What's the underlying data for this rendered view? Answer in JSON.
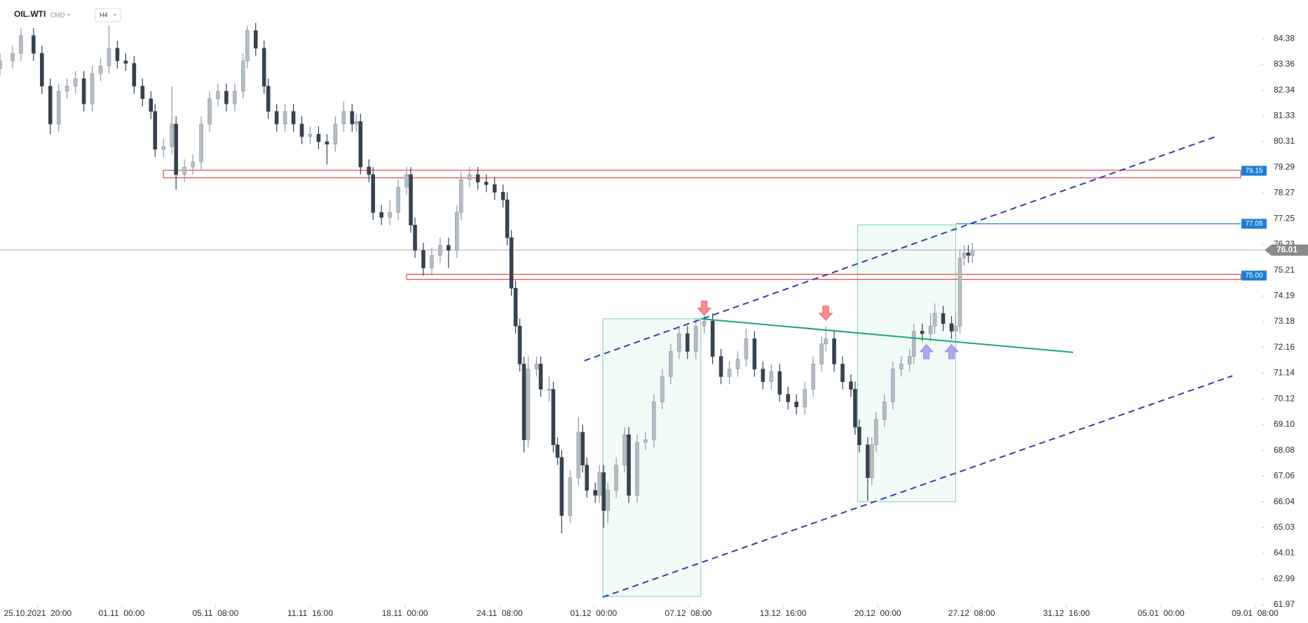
{
  "header": {
    "symbol": "OIL.WTI",
    "market": "CMD",
    "interval": "H4"
  },
  "chart_data": {
    "type": "candlestick",
    "x": [
      0,
      3,
      5,
      8,
      10,
      12,
      14,
      16,
      18,
      20,
      22,
      24,
      26,
      28,
      30,
      32,
      34,
      36,
      37,
      39,
      41,
      42,
      44,
      46,
      48,
      50,
      52,
      54,
      56,
      58,
      59,
      61,
      63,
      64,
      66,
      68,
      70,
      72,
      74,
      76,
      78,
      80,
      82,
      84,
      85,
      86,
      88,
      89,
      91,
      93,
      95,
      97,
      98,
      99,
      101,
      103,
      105,
      107,
      109,
      110,
      112,
      114,
      116,
      118,
      120,
      121,
      122,
      123,
      124,
      125,
      126,
      128,
      129,
      131,
      132,
      133,
      134,
      136,
      138,
      139,
      140,
      142,
      143,
      144,
      145,
      147,
      149,
      150,
      152,
      154,
      156,
      158,
      160,
      162,
      164,
      166,
      168,
      170,
      172,
      174,
      176,
      178,
      180,
      182,
      184,
      186,
      188,
      190,
      192,
      194,
      196,
      197,
      199,
      201,
      203,
      204,
      205,
      207,
      208,
      209,
      211,
      213,
      215,
      217,
      218,
      220,
      222,
      223,
      225,
      227,
      228,
      229,
      230,
      231,
      232
    ],
    "open": [
      83.2,
      83.5,
      83.8,
      84.5,
      83.8,
      82.5,
      81.0,
      82.3,
      82.5,
      82.8,
      81.8,
      83.0,
      83.3,
      84.0,
      83.5,
      83.4,
      82.5,
      82.0,
      81.5,
      80.0,
      80.1,
      81.0,
      79.0,
      79.3,
      79.5,
      81.0,
      82.0,
      82.3,
      81.8,
      82.3,
      83.5,
      84.7,
      84.0,
      82.5,
      81.5,
      81.0,
      81.5,
      81.0,
      80.5,
      80.6,
      80.3,
      80.2,
      81.0,
      81.5,
      81.0,
      81.1,
      79.3,
      79.0,
      77.5,
      77.3,
      77.5,
      78.5,
      79.0,
      77.0,
      76.0,
      75.3,
      75.8,
      76.2,
      76.0,
      77.5,
      78.8,
      79.0,
      78.7,
      78.6,
      78.3,
      78.0,
      76.5,
      74.5,
      73.0,
      71.5,
      68.5,
      71.3,
      71.5,
      70.5,
      70.5,
      68.3,
      67.8,
      65.5,
      67.0,
      68.8,
      67.5,
      66.5,
      66.3,
      67.2,
      65.7,
      66.5,
      67.5,
      68.7,
      66.3,
      68.4,
      68.5,
      70.0,
      71.0,
      72.0,
      72.7,
      72.0,
      73.0,
      73.2,
      71.8,
      71.0,
      71.3,
      71.7,
      72.5,
      71.3,
      70.8,
      71.2,
      70.3,
      70.0,
      69.8,
      70.5,
      71.5,
      72.3,
      72.5,
      71.5,
      70.8,
      70.5,
      69.0,
      68.3,
      67.0,
      68.3,
      69.3,
      70.0,
      71.3,
      71.5,
      71.8,
      72.8,
      72.7,
      73.0,
      73.5,
      73.1,
      72.8,
      73.0,
      75.7,
      75.9,
      75.8
    ],
    "high": [
      83.8,
      84.1,
      84.8,
      84.8,
      84.1,
      82.8,
      82.6,
      82.8,
      83.1,
      83.1,
      83.3,
      83.6,
      84.9,
      84.3,
      83.8,
      83.7,
      82.8,
      82.3,
      81.8,
      80.4,
      82.5,
      81.3,
      79.6,
      79.8,
      81.3,
      82.3,
      82.6,
      82.6,
      82.6,
      83.8,
      84.9,
      85.0,
      84.3,
      82.8,
      81.8,
      81.8,
      81.8,
      81.3,
      80.9,
      80.9,
      80.6,
      81.3,
      81.9,
      81.8,
      81.4,
      81.4,
      79.6,
      79.3,
      77.8,
      78.0,
      78.8,
      79.3,
      79.3,
      77.3,
      76.3,
      76.1,
      76.5,
      76.5,
      77.8,
      79.1,
      79.3,
      79.3,
      79.0,
      78.9,
      78.6,
      78.3,
      76.8,
      74.8,
      73.3,
      71.8,
      71.8,
      71.8,
      71.8,
      71.0,
      70.8,
      68.6,
      68.1,
      67.3,
      69.4,
      69.1,
      67.8,
      66.8,
      67.5,
      67.5,
      66.8,
      67.8,
      69.0,
      69.0,
      68.7,
      68.8,
      70.3,
      71.3,
      72.3,
      73.0,
      73.0,
      73.3,
      73.5,
      73.5,
      72.1,
      71.6,
      72.0,
      72.9,
      72.8,
      71.6,
      71.5,
      71.5,
      70.6,
      70.3,
      70.8,
      71.8,
      72.6,
      73.0,
      72.8,
      71.8,
      71.1,
      70.8,
      69.3,
      68.6,
      68.6,
      69.6,
      70.3,
      71.6,
      71.8,
      72.1,
      73.1,
      73.1,
      73.5,
      73.9,
      73.8,
      73.4,
      73.6,
      76.0,
      76.2,
      76.2,
      76.3
    ],
    "low": [
      82.9,
      83.2,
      83.5,
      83.5,
      82.2,
      80.6,
      80.7,
      82.0,
      82.2,
      81.5,
      81.5,
      82.7,
      83.0,
      83.2,
      83.1,
      82.2,
      81.7,
      81.2,
      79.7,
      79.7,
      79.8,
      78.4,
      78.7,
      79.0,
      79.2,
      80.7,
      81.7,
      81.5,
      81.5,
      82.0,
      83.2,
      83.7,
      82.2,
      81.2,
      80.7,
      80.7,
      80.7,
      80.2,
      80.2,
      80.0,
      79.4,
      79.9,
      80.7,
      80.7,
      80.7,
      79.0,
      78.7,
      77.2,
      77.0,
      77.0,
      77.2,
      78.2,
      76.7,
      75.7,
      75.0,
      75.0,
      75.5,
      75.3,
      75.7,
      77.2,
      78.5,
      78.4,
      78.3,
      78.0,
      77.7,
      76.2,
      74.2,
      72.7,
      71.2,
      68.0,
      68.2,
      71.0,
      70.2,
      70.0,
      68.0,
      67.5,
      64.8,
      65.2,
      66.7,
      67.2,
      66.2,
      66.0,
      66.0,
      65.0,
      65.2,
      66.2,
      67.2,
      66.0,
      66.0,
      68.1,
      68.2,
      69.7,
      70.7,
      71.7,
      71.7,
      71.7,
      72.7,
      71.5,
      70.7,
      70.7,
      71.0,
      71.4,
      71.0,
      70.5,
      70.5,
      70.0,
      69.7,
      69.5,
      69.5,
      70.2,
      71.2,
      72.0,
      71.2,
      70.5,
      70.2,
      68.7,
      68.0,
      66.1,
      66.7,
      68.0,
      69.0,
      69.7,
      71.0,
      71.2,
      71.5,
      72.4,
      72.4,
      72.7,
      72.8,
      72.5,
      72.5,
      72.7,
      75.4,
      75.5,
      75.5
    ],
    "close": [
      83.5,
      83.8,
      84.5,
      83.8,
      82.5,
      81.0,
      82.3,
      82.5,
      82.8,
      81.8,
      83.0,
      83.3,
      84.0,
      83.5,
      83.4,
      82.5,
      82.0,
      81.5,
      80.0,
      80.1,
      81.0,
      79.0,
      79.3,
      79.5,
      81.0,
      82.0,
      82.3,
      81.8,
      82.3,
      83.5,
      84.7,
      84.0,
      82.5,
      81.5,
      81.0,
      81.5,
      81.0,
      80.5,
      80.6,
      80.3,
      80.2,
      81.0,
      81.5,
      81.0,
      81.1,
      79.3,
      79.0,
      77.5,
      77.3,
      77.5,
      78.5,
      79.0,
      77.0,
      76.0,
      75.3,
      75.8,
      76.2,
      76.0,
      77.5,
      78.8,
      79.0,
      78.7,
      78.6,
      78.3,
      78.0,
      76.5,
      74.5,
      73.0,
      71.5,
      68.5,
      71.3,
      71.5,
      70.5,
      70.5,
      68.3,
      67.8,
      65.5,
      67.0,
      68.8,
      67.5,
      66.5,
      66.3,
      67.2,
      65.7,
      66.5,
      67.5,
      68.7,
      66.3,
      68.4,
      68.5,
      70.0,
      71.0,
      72.0,
      72.7,
      72.0,
      73.0,
      73.2,
      71.8,
      71.0,
      71.3,
      71.7,
      72.5,
      71.3,
      70.8,
      71.2,
      70.3,
      70.0,
      69.8,
      70.5,
      71.5,
      72.3,
      72.5,
      71.5,
      70.8,
      70.5,
      69.0,
      68.3,
      67.0,
      68.3,
      69.3,
      70.0,
      71.3,
      71.5,
      71.8,
      72.8,
      72.7,
      73.0,
      73.5,
      73.1,
      72.8,
      73.0,
      75.7,
      75.9,
      75.8,
      76.01
    ],
    "up_color": "#b4bcc4",
    "down_color": "#36424e",
    "xlim": [
      0,
      301
    ],
    "ylim": [
      61.94,
      85.91
    ],
    "xticks": [
      {
        "value": 9,
        "label": "25.10.2021  20:00"
      },
      {
        "value": 29,
        "label": "01.11  00:00"
      },
      {
        "value": 51.4,
        "label": "05.11  08:00"
      },
      {
        "value": 74,
        "label": "11.11  16:00"
      },
      {
        "value": 96.6,
        "label": "18.11  00:00"
      },
      {
        "value": 119.2,
        "label": "24.11  08:00"
      },
      {
        "value": 141.6,
        "label": "01.12  00:00"
      },
      {
        "value": 164.2,
        "label": "07.12  08:00"
      },
      {
        "value": 186.8,
        "label": "13.12  16:00"
      },
      {
        "value": 209.4,
        "label": "20.12  00:00"
      },
      {
        "value": 231.8,
        "label": "27.12  08:00"
      },
      {
        "value": 254.4,
        "label": "31.12  16:00"
      },
      {
        "value": 277,
        "label": "05.01  00:00"
      },
      {
        "value": 299.4,
        "label": "09.01  08:00"
      }
    ],
    "yticks": [
      84.38,
      83.36,
      82.34,
      81.33,
      80.31,
      79.29,
      78.27,
      77.25,
      76.23,
      75.21,
      74.19,
      73.18,
      72.16,
      71.14,
      70.12,
      {
        "value": 69.1,
        "label": "69.10"
      },
      68.08,
      67.06,
      66.04,
      65.03,
      64.01,
      62.99,
      61.97
    ],
    "current_price": 76.01,
    "zones": [
      {
        "from": 39,
        "to": 296,
        "low": 78.87,
        "high": 79.17,
        "color": "#e0474c",
        "tag": 79.15
      },
      {
        "from": 97,
        "to": 296,
        "low": 74.85,
        "high": 75.05,
        "color": "#e0474c",
        "tag": {
          "value": 75,
          "label": "75.00"
        }
      }
    ],
    "levels": [
      {
        "from": 228,
        "to": 296,
        "value": 77.05,
        "color": "#1c7fd6"
      }
    ],
    "trendlines": [
      {
        "x1": 139.4,
        "y1": 71.63,
        "x2": 290,
        "y2": 80.5,
        "color": "#3340a8",
        "dash": true
      },
      {
        "x1": 143.8,
        "y1": 62.27,
        "x2": 294,
        "y2": 71.03,
        "color": "#3340a8",
        "dash": true
      },
      {
        "x1": 167.2,
        "y1": 73.29,
        "x2": 256,
        "y2": 71.96,
        "color": "#1aa772",
        "dash": false
      }
    ],
    "boxes": [
      {
        "x1": 143.8,
        "x2": 167.2,
        "low": 62.3,
        "high": 73.29,
        "color": "#3fc493"
      },
      {
        "x1": 204.6,
        "x2": 228,
        "low": 66.05,
        "high": 77.01,
        "color": "#3fc493"
      }
    ],
    "arrows": [
      {
        "x": 168,
        "price": 73.6,
        "dir": "down",
        "color": "#f26a6a"
      },
      {
        "x": 197,
        "price": 73.4,
        "dir": "down",
        "color": "#f26a6a"
      },
      {
        "x": 221,
        "price": 72.1,
        "dir": "up",
        "color": "#9b8ce6"
      },
      {
        "x": 227,
        "price": 72.1,
        "dir": "up",
        "color": "#9b8ce6"
      }
    ]
  }
}
